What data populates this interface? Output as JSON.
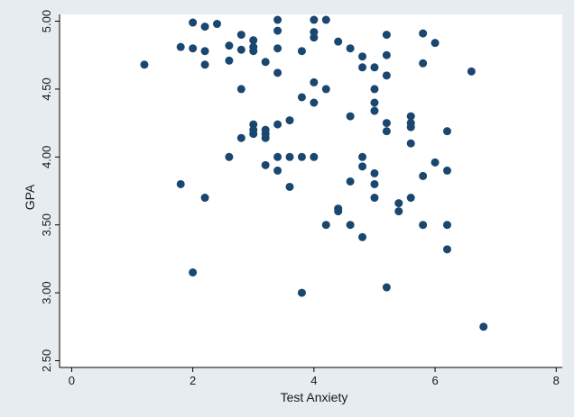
{
  "chart_data": {
    "type": "scatter",
    "title": "",
    "xlabel": "Test Anxiety",
    "ylabel": "GPA",
    "xlim": [
      -0.2,
      8.1
    ],
    "ylim": [
      2.45,
      5.05
    ],
    "x_ticks": [
      0,
      2,
      4,
      6,
      8
    ],
    "x_tick_labels": [
      "0",
      "2",
      "4",
      "6",
      "8"
    ],
    "y_ticks": [
      2.5,
      3.0,
      3.5,
      4.0,
      4.5,
      5.0
    ],
    "y_tick_labels": [
      "2.50",
      "3.00",
      "3.50",
      "4.00",
      "4.50",
      "5.00"
    ],
    "grid": false,
    "marker_color": "#1a476f",
    "plot_background": "#ffffff",
    "figure_background": "#e7ecf0",
    "series": [
      {
        "points": [
          [
            1.2,
            4.68
          ],
          [
            1.8,
            4.81
          ],
          [
            1.8,
            3.8
          ],
          [
            2.0,
            4.99
          ],
          [
            2.0,
            4.8
          ],
          [
            2.0,
            3.15
          ],
          [
            2.2,
            4.96
          ],
          [
            2.2,
            4.78
          ],
          [
            2.2,
            4.68
          ],
          [
            2.2,
            3.7
          ],
          [
            2.4,
            4.98
          ],
          [
            2.6,
            4.82
          ],
          [
            2.6,
            4.71
          ],
          [
            2.6,
            4.0
          ],
          [
            2.8,
            4.9
          ],
          [
            2.8,
            4.79
          ],
          [
            2.8,
            4.5
          ],
          [
            2.8,
            4.14
          ],
          [
            3.0,
            4.86
          ],
          [
            3.0,
            4.81
          ],
          [
            3.0,
            4.78
          ],
          [
            3.0,
            4.24
          ],
          [
            3.0,
            4.2
          ],
          [
            3.0,
            4.17
          ],
          [
            3.2,
            4.7
          ],
          [
            3.2,
            4.2
          ],
          [
            3.2,
            4.17
          ],
          [
            3.2,
            4.14
          ],
          [
            3.2,
            3.94
          ],
          [
            3.4,
            5.01
          ],
          [
            3.4,
            4.93
          ],
          [
            3.4,
            4.8
          ],
          [
            3.4,
            4.62
          ],
          [
            3.4,
            4.24
          ],
          [
            3.4,
            4.0
          ],
          [
            3.4,
            3.9
          ],
          [
            3.6,
            4.27
          ],
          [
            3.6,
            4.0
          ],
          [
            3.6,
            3.78
          ],
          [
            3.8,
            4.78
          ],
          [
            3.8,
            4.44
          ],
          [
            3.8,
            4.0
          ],
          [
            3.8,
            3.0
          ],
          [
            4.0,
            5.01
          ],
          [
            4.0,
            4.92
          ],
          [
            4.0,
            4.88
          ],
          [
            4.0,
            4.55
          ],
          [
            4.0,
            4.4
          ],
          [
            4.0,
            4.0
          ],
          [
            4.2,
            5.01
          ],
          [
            4.2,
            4.5
          ],
          [
            4.2,
            3.5
          ],
          [
            4.4,
            4.85
          ],
          [
            4.4,
            3.62
          ],
          [
            4.4,
            3.6
          ],
          [
            4.6,
            4.8
          ],
          [
            4.6,
            4.3
          ],
          [
            4.6,
            3.82
          ],
          [
            4.6,
            3.5
          ],
          [
            4.8,
            4.74
          ],
          [
            4.8,
            4.66
          ],
          [
            4.8,
            4.0
          ],
          [
            4.8,
            3.93
          ],
          [
            4.8,
            3.41
          ],
          [
            5.0,
            4.66
          ],
          [
            5.0,
            4.5
          ],
          [
            5.0,
            4.4
          ],
          [
            5.0,
            4.34
          ],
          [
            5.0,
            3.88
          ],
          [
            5.0,
            3.8
          ],
          [
            5.0,
            3.7
          ],
          [
            5.2,
            4.9
          ],
          [
            5.2,
            4.75
          ],
          [
            5.2,
            4.6
          ],
          [
            5.2,
            4.25
          ],
          [
            5.2,
            4.19
          ],
          [
            5.2,
            3.04
          ],
          [
            5.4,
            3.66
          ],
          [
            5.4,
            3.6
          ],
          [
            5.6,
            4.3
          ],
          [
            5.6,
            4.25
          ],
          [
            5.6,
            4.22
          ],
          [
            5.6,
            4.1
          ],
          [
            5.6,
            3.7
          ],
          [
            5.8,
            4.91
          ],
          [
            5.8,
            4.69
          ],
          [
            5.8,
            3.86
          ],
          [
            5.8,
            3.5
          ],
          [
            6.0,
            4.84
          ],
          [
            6.0,
            3.96
          ],
          [
            6.2,
            4.19
          ],
          [
            6.2,
            3.9
          ],
          [
            6.2,
            3.5
          ],
          [
            6.2,
            3.32
          ],
          [
            6.6,
            4.63
          ],
          [
            6.8,
            2.75
          ]
        ]
      }
    ]
  }
}
